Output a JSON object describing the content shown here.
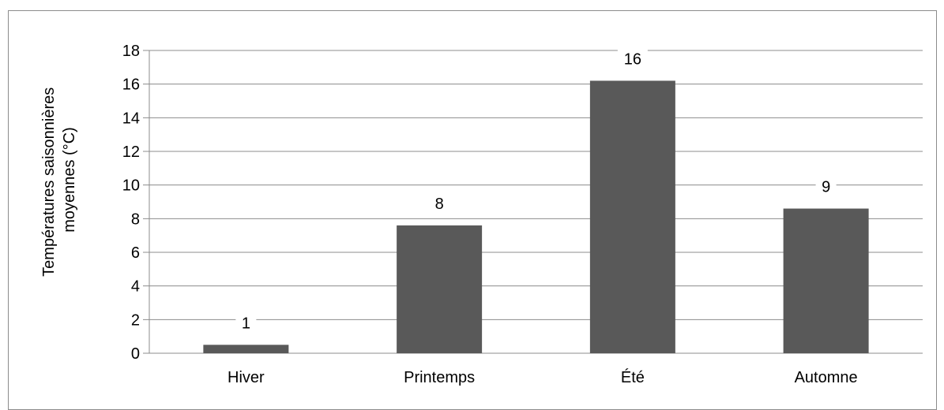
{
  "chart_data": {
    "type": "bar",
    "categories": [
      "Hiver",
      "Printemps",
      "Été",
      "Automne"
    ],
    "values": [
      0.5,
      7.6,
      16.2,
      8.6
    ],
    "data_labels": [
      "1",
      "8",
      "16",
      "9"
    ],
    "ylabel_lines": [
      "Températures saisonnières",
      "moyennes (°C)"
    ],
    "xlabel": "",
    "ylim": [
      0,
      18
    ],
    "yticks": [
      0,
      2,
      4,
      6,
      8,
      10,
      12,
      14,
      16,
      18
    ],
    "grid": true,
    "legend": "none",
    "colors": {
      "bar": "#595959",
      "grid": "#8c8c8c",
      "axis": "#8c8c8c"
    }
  }
}
